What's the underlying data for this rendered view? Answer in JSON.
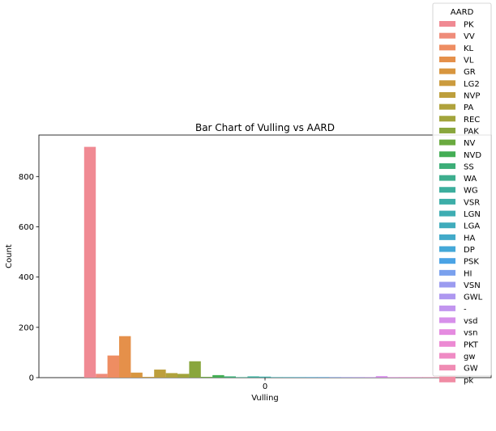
{
  "chart_data": {
    "type": "bar",
    "title": "Bar Chart of Vulling vs AARD",
    "xlabel": "Vulling",
    "ylabel": "Count",
    "categories": [
      "0"
    ],
    "ylim": [
      0,
      965
    ],
    "yticks": [
      0,
      200,
      400,
      600,
      800
    ],
    "grid": false,
    "legend": {
      "title": "AARD",
      "position": "top-right"
    },
    "series": [
      {
        "name": "PK",
        "values": [
          918
        ],
        "color": "#f08a93"
      },
      {
        "name": "VV",
        "values": [
          15
        ],
        "color": "#ef8c7a"
      },
      {
        "name": "KL",
        "values": [
          88
        ],
        "color": "#ee8d62"
      },
      {
        "name": "VL",
        "values": [
          165
        ],
        "color": "#e5904a"
      },
      {
        "name": "GR",
        "values": [
          20
        ],
        "color": "#d8963f"
      },
      {
        "name": "LG2",
        "values": [
          3
        ],
        "color": "#cb9b3e"
      },
      {
        "name": "NVP",
        "values": [
          32
        ],
        "color": "#bd9f3c"
      },
      {
        "name": "PA",
        "values": [
          18
        ],
        "color": "#b0a23c"
      },
      {
        "name": "REC",
        "values": [
          15
        ],
        "color": "#a2a43c"
      },
      {
        "name": "PAK",
        "values": [
          65
        ],
        "color": "#89a63d"
      },
      {
        "name": "NV",
        "values": [
          3
        ],
        "color": "#6aaa3f"
      },
      {
        "name": "NVD",
        "values": [
          10
        ],
        "color": "#44ae55"
      },
      {
        "name": "SS",
        "values": [
          5
        ],
        "color": "#3dae78"
      },
      {
        "name": "WA",
        "values": [
          2
        ],
        "color": "#3dae8e"
      },
      {
        "name": "WG",
        "values": [
          5
        ],
        "color": "#3cae9d"
      },
      {
        "name": "VSR",
        "values": [
          4
        ],
        "color": "#3daea8"
      },
      {
        "name": "LGN",
        "values": [
          2
        ],
        "color": "#3eadb2"
      },
      {
        "name": "LGA",
        "values": [
          2
        ],
        "color": "#40acbc"
      },
      {
        "name": "HA",
        "values": [
          2
        ],
        "color": "#42aac9"
      },
      {
        "name": "DP",
        "values": [
          2
        ],
        "color": "#44a8d8"
      },
      {
        "name": "PSK",
        "values": [
          2
        ],
        "color": "#4aa3e5"
      },
      {
        "name": "HI",
        "values": [
          2
        ],
        "color": "#7aa1ee"
      },
      {
        "name": "VSN",
        "values": [
          2
        ],
        "color": "#9b9bf0"
      },
      {
        "name": "GWL",
        "values": [
          2
        ],
        "color": "#ae98f0"
      },
      {
        "name": "-",
        "values": [
          2
        ],
        "color": "#c295ef"
      },
      {
        "name": "vsd",
        "values": [
          6
        ],
        "color": "#d790ea"
      },
      {
        "name": "vsn",
        "values": [
          2
        ],
        "color": "#e58be0"
      },
      {
        "name": "PKT",
        "values": [
          2
        ],
        "color": "#ec8ad3"
      },
      {
        "name": "gw",
        "values": [
          2
        ],
        "color": "#ef8bc4"
      },
      {
        "name": "GW",
        "values": [
          2
        ],
        "color": "#f08cb4"
      },
      {
        "name": "pk",
        "values": [
          2
        ],
        "color": "#f08ca4"
      }
    ]
  }
}
